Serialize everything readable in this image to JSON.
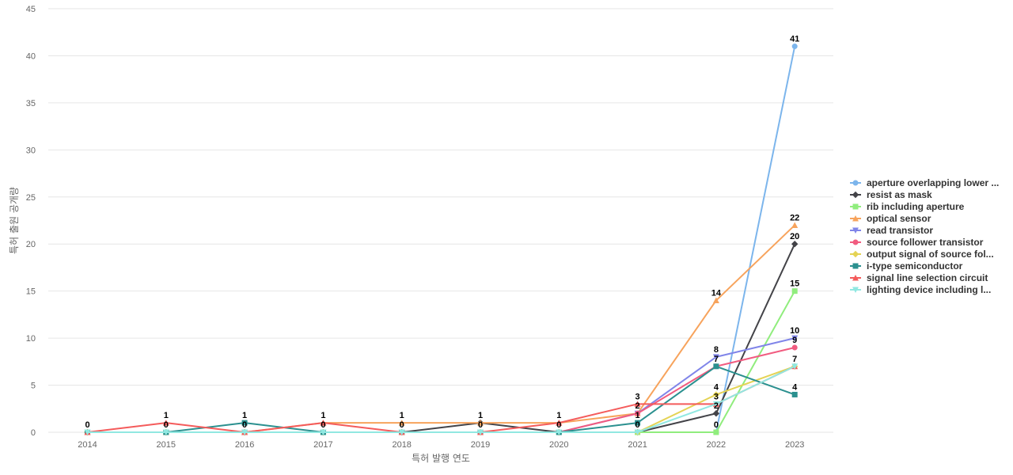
{
  "chart_data": {
    "type": "line",
    "title": "",
    "xlabel": "특허 발행 연도",
    "ylabel": "특허 출원 공개량",
    "x": [
      "2014",
      "2015",
      "2016",
      "2017",
      "2018",
      "2019",
      "2020",
      "2021",
      "2022",
      "2023"
    ],
    "ylim": [
      0,
      45
    ],
    "yticks": [
      0,
      5,
      10,
      15,
      20,
      25,
      30,
      35,
      40,
      45
    ],
    "grid": true,
    "legend_position": "right",
    "series": [
      {
        "name": "aperture overlapping lower ...",
        "color": "#7cb5ec",
        "marker": "circle",
        "values": [
          0,
          0,
          0,
          0,
          0,
          0,
          0,
          0,
          0,
          41
        ]
      },
      {
        "name": "resist as mask",
        "color": "#434348",
        "marker": "diamond",
        "values": [
          0,
          0,
          0,
          0,
          0,
          1,
          0,
          0,
          2,
          20
        ]
      },
      {
        "name": "rib including aperture",
        "color": "#90ed7d",
        "marker": "square",
        "values": [
          0,
          0,
          0,
          0,
          0,
          0,
          0,
          0,
          0,
          15
        ]
      },
      {
        "name": "optical sensor",
        "color": "#f7a35c",
        "marker": "triangle",
        "values": [
          0,
          0,
          0,
          1,
          1,
          1,
          1,
          2,
          14,
          22
        ]
      },
      {
        "name": "read transistor",
        "color": "#8085e9",
        "marker": "triangle-down",
        "values": [
          0,
          0,
          0,
          0,
          0,
          0,
          0,
          2,
          8,
          10
        ]
      },
      {
        "name": "source follower transistor",
        "color": "#f15c80",
        "marker": "circle",
        "values": [
          0,
          0,
          0,
          0,
          0,
          0,
          0,
          2,
          7,
          9
        ]
      },
      {
        "name": "output signal of source fol...",
        "color": "#e4d354",
        "marker": "diamond",
        "values": [
          0,
          0,
          0,
          0,
          0,
          0,
          0,
          0,
          4,
          7
        ]
      },
      {
        "name": "i-type semiconductor",
        "color": "#2b908f",
        "marker": "square",
        "values": [
          0,
          0,
          1,
          0,
          0,
          0,
          0,
          1,
          7,
          4
        ]
      },
      {
        "name": "signal line selection circuit",
        "color": "#f45b5b",
        "marker": "triangle",
        "values": [
          0,
          1,
          0,
          1,
          0,
          0,
          1,
          3,
          3,
          7
        ]
      },
      {
        "name": "lighting device including l...",
        "color": "#91e8e1",
        "marker": "triangle-down",
        "values": [
          0,
          0,
          0,
          0,
          0,
          0,
          0,
          0,
          3,
          7
        ]
      }
    ],
    "data_labels": [
      {
        "x": "2014",
        "text": "0",
        "value": 0
      },
      {
        "x": "2015",
        "text": "1",
        "value": 1
      },
      {
        "x": "2015",
        "text": "0",
        "value": 0
      },
      {
        "x": "2016",
        "text": "1",
        "value": 1
      },
      {
        "x": "2016",
        "text": "0",
        "value": 0
      },
      {
        "x": "2017",
        "text": "1",
        "value": 1
      },
      {
        "x": "2017",
        "text": "0",
        "value": 0
      },
      {
        "x": "2018",
        "text": "1",
        "value": 1
      },
      {
        "x": "2018",
        "text": "0",
        "value": 0
      },
      {
        "x": "2019",
        "text": "1",
        "value": 1
      },
      {
        "x": "2019",
        "text": "0",
        "value": 0
      },
      {
        "x": "2020",
        "text": "1",
        "value": 1
      },
      {
        "x": "2020",
        "text": "0",
        "value": 0
      },
      {
        "x": "2021",
        "text": "3",
        "value": 3
      },
      {
        "x": "2021",
        "text": "2",
        "value": 2
      },
      {
        "x": "2021",
        "text": "1",
        "value": 1
      },
      {
        "x": "2021",
        "text": "0",
        "value": 0
      },
      {
        "x": "2022",
        "text": "14",
        "value": 14
      },
      {
        "x": "2022",
        "text": "8",
        "value": 8
      },
      {
        "x": "2022",
        "text": "7",
        "value": 7
      },
      {
        "x": "2022",
        "text": "4",
        "value": 4
      },
      {
        "x": "2022",
        "text": "3",
        "value": 3
      },
      {
        "x": "2022",
        "text": "2",
        "value": 2
      },
      {
        "x": "2022",
        "text": "0",
        "value": 0
      },
      {
        "x": "2023",
        "text": "41",
        "value": 41
      },
      {
        "x": "2023",
        "text": "22",
        "value": 22
      },
      {
        "x": "2023",
        "text": "20",
        "value": 20
      },
      {
        "x": "2023",
        "text": "15",
        "value": 15
      },
      {
        "x": "2023",
        "text": "10",
        "value": 10
      },
      {
        "x": "2023",
        "text": "9",
        "value": 9
      },
      {
        "x": "2023",
        "text": "7",
        "value": 7
      },
      {
        "x": "2023",
        "text": "4",
        "value": 4
      }
    ]
  }
}
